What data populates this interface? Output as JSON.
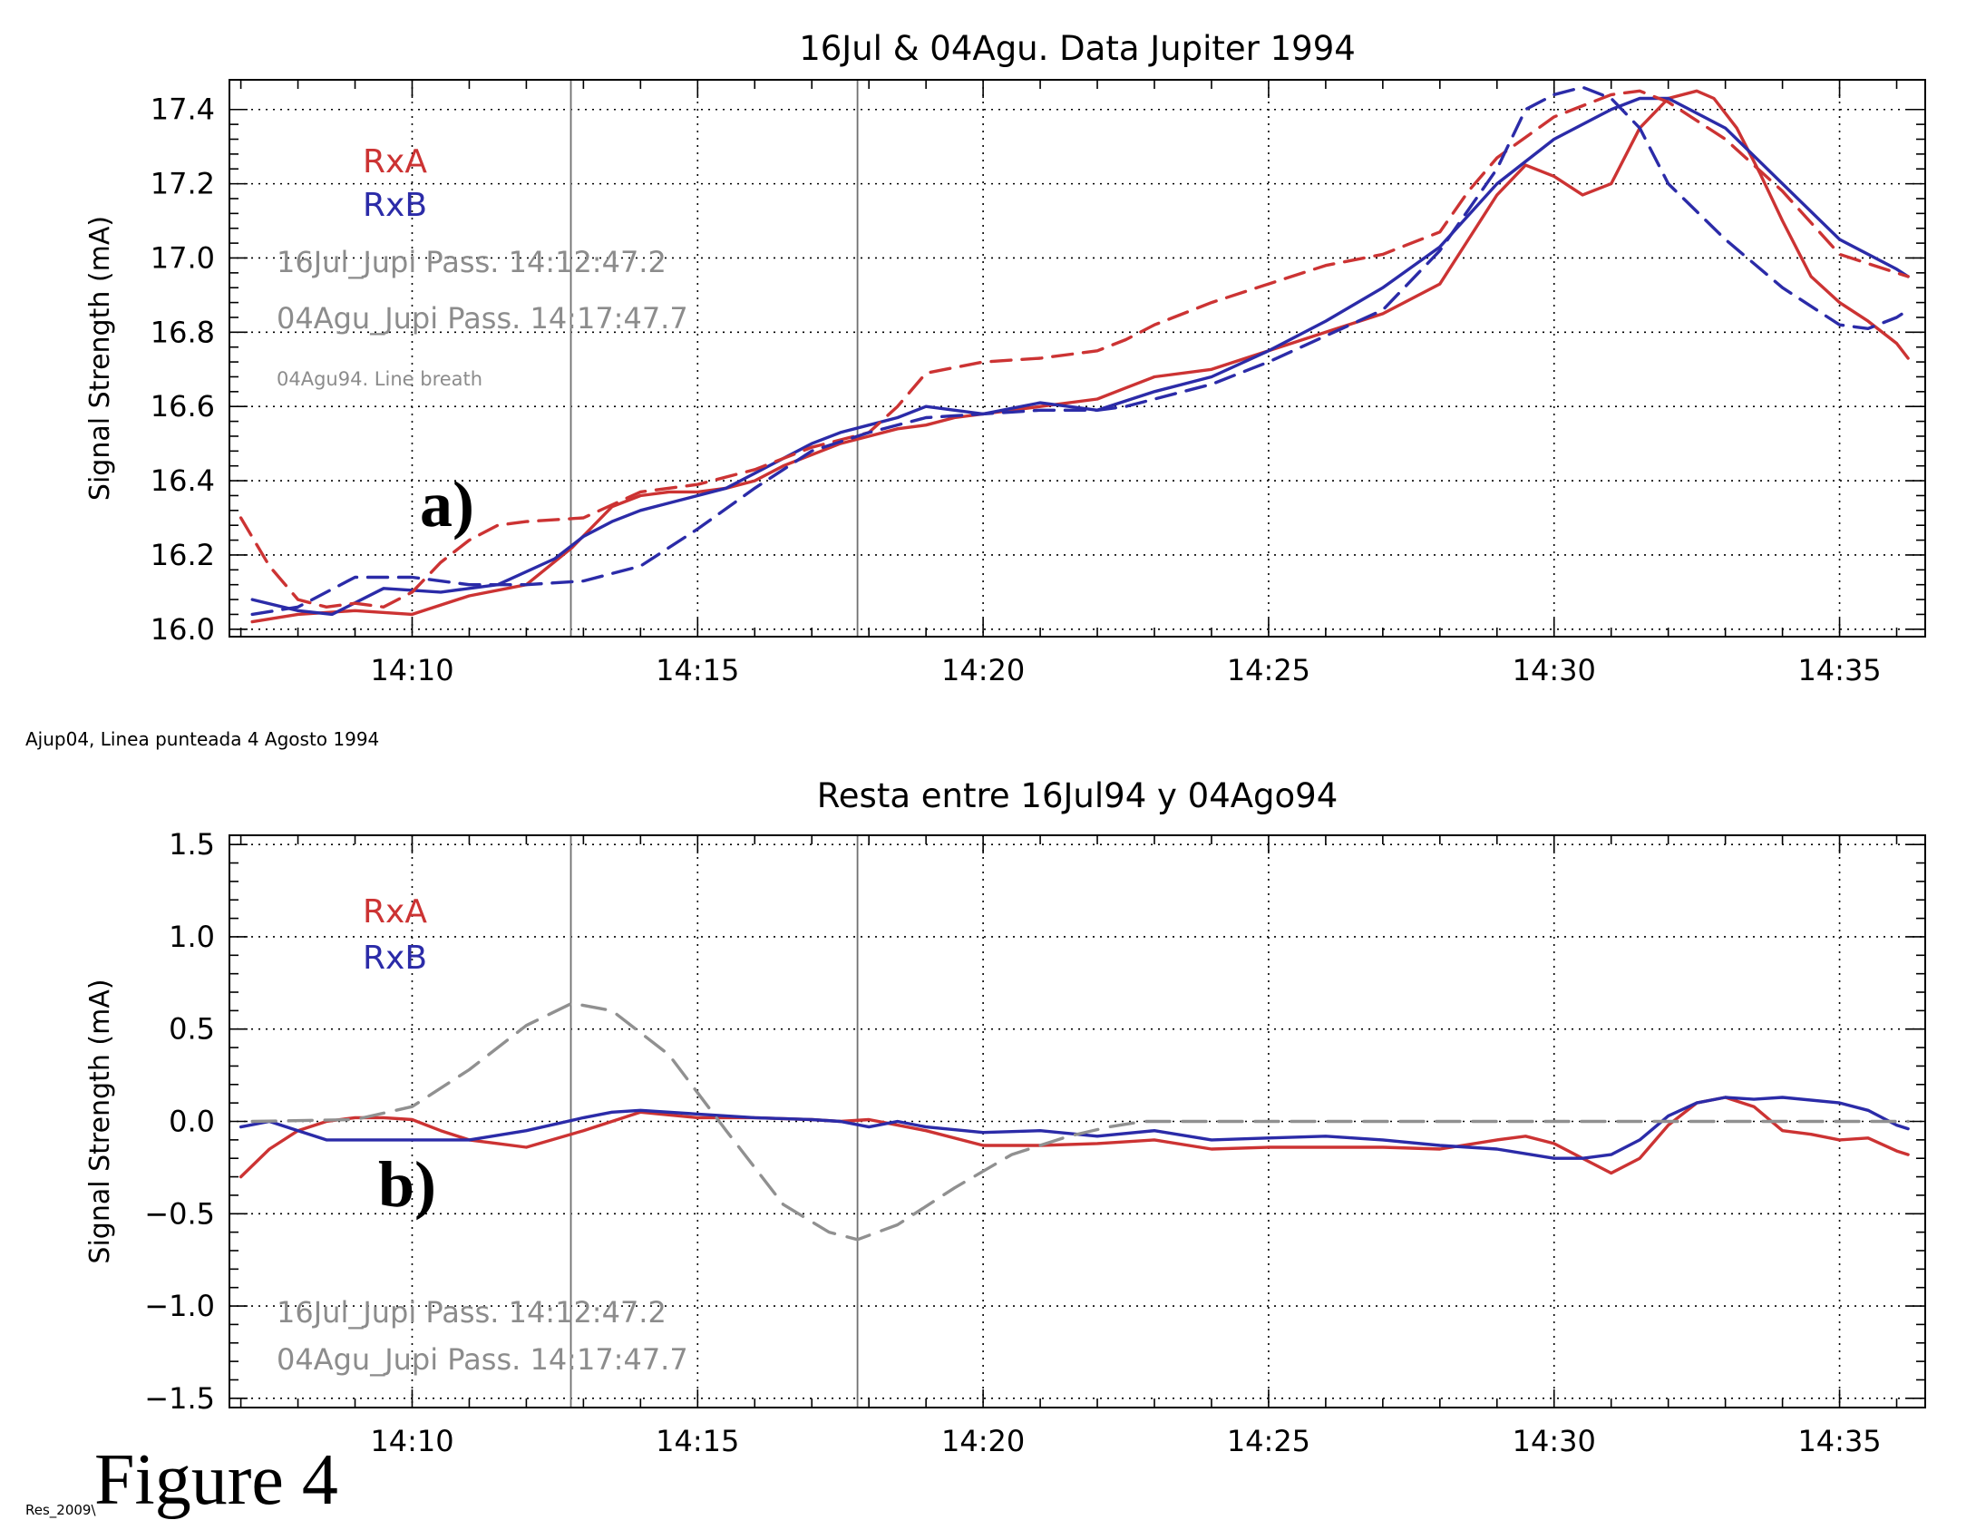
{
  "figure": {
    "label": "Figure 4",
    "footer": "Res_2009\\",
    "between_note": "Ajup04, Linea punteada 4 Agosto 1994"
  },
  "colors": {
    "rxa": "#cc3333",
    "rxb": "#2b2ba8",
    "ref": "#909090",
    "axis": "#000000",
    "grid": "#000000",
    "note": "#8c8c8c"
  },
  "x_ticks": [
    "14:10",
    "14:15",
    "14:20",
    "14:25",
    "14:30",
    "14:35"
  ],
  "chart_data": [
    {
      "type": "line",
      "panel": "a",
      "panel_label": "a)",
      "title": "16Jul & 04Agu. Data Jupiter 1994",
      "xlabel": "",
      "ylabel": "Signal Strength (mA)",
      "x_unit": "minutes after 14:00",
      "xlim": [
        6.8,
        36.5
      ],
      "ylim": [
        15.98,
        17.48
      ],
      "yticks": [
        "16.0",
        "16.2",
        "16.4",
        "16.6",
        "16.8",
        "17.0",
        "17.2",
        "17.4"
      ],
      "grid": true,
      "legend": {
        "position": "top-left",
        "entries": [
          "RxA",
          "RxB"
        ]
      },
      "annotations": [
        "16Jul_Jupi Pass. 14:12:47.2",
        "04Agu_Jupi Pass. 14:17:47.7",
        "04Agu94. Line breath"
      ],
      "vlines": [
        12.78,
        17.8
      ],
      "series": [
        {
          "name": "RxA",
          "style": "solid",
          "x": [
            7.2,
            8,
            9,
            10,
            11,
            12,
            12.8,
            13.5,
            14,
            14.5,
            15,
            15.5,
            16,
            16.5,
            17,
            17.5,
            18,
            18.5,
            19,
            19.5,
            20,
            21,
            22,
            22.5,
            23,
            24,
            25,
            26,
            27,
            28,
            28.5,
            29,
            29.5,
            30,
            30.5,
            31,
            31.5,
            32,
            32.5,
            32.8,
            33.2,
            33.6,
            34,
            34.5,
            35,
            35.5,
            36,
            36.2
          ],
          "y": [
            16.02,
            16.04,
            16.05,
            16.04,
            16.09,
            16.12,
            16.22,
            16.33,
            16.36,
            16.37,
            16.37,
            16.38,
            16.4,
            16.44,
            16.47,
            16.5,
            16.52,
            16.54,
            16.55,
            16.57,
            16.58,
            16.6,
            16.62,
            16.65,
            16.68,
            16.7,
            16.75,
            16.8,
            16.85,
            16.93,
            17.05,
            17.17,
            17.25,
            17.22,
            17.17,
            17.2,
            17.35,
            17.43,
            17.45,
            17.43,
            17.35,
            17.23,
            17.1,
            16.95,
            16.88,
            16.83,
            16.77,
            16.73
          ]
        },
        {
          "name": "RxB",
          "style": "solid",
          "x": [
            7.2,
            8,
            8.6,
            9.5,
            10.5,
            11.5,
            12.5,
            13,
            13.5,
            14,
            14.5,
            15,
            15.5,
            16,
            16.5,
            17,
            17.5,
            18,
            18.5,
            19,
            20,
            21,
            22,
            23,
            24,
            25,
            26,
            27,
            28,
            29,
            30,
            31,
            31.5,
            32,
            33,
            34,
            35,
            36,
            36.2
          ],
          "y": [
            16.08,
            16.05,
            16.04,
            16.11,
            16.1,
            16.12,
            16.19,
            16.25,
            16.29,
            16.32,
            16.34,
            16.36,
            16.38,
            16.42,
            16.46,
            16.5,
            16.53,
            16.55,
            16.57,
            16.6,
            16.58,
            16.61,
            16.59,
            16.64,
            16.68,
            16.75,
            16.83,
            16.92,
            17.03,
            17.2,
            17.32,
            17.4,
            17.43,
            17.43,
            17.35,
            17.2,
            17.05,
            16.97,
            16.95
          ]
        },
        {
          "name": "RxA",
          "style": "dashed",
          "x": [
            7.0,
            7.5,
            8,
            8.5,
            9,
            9.5,
            10,
            10.5,
            11,
            11.5,
            12,
            13,
            14,
            15,
            16,
            17,
            18,
            18.5,
            19,
            20,
            21,
            22,
            22.5,
            23,
            24,
            25,
            26,
            27,
            28,
            28.5,
            29,
            30,
            31,
            31.5,
            32,
            33,
            34,
            35,
            36,
            36.2
          ],
          "y": [
            16.3,
            16.17,
            16.08,
            16.06,
            16.07,
            16.06,
            16.1,
            16.18,
            16.24,
            16.28,
            16.29,
            16.3,
            16.37,
            16.39,
            16.43,
            16.49,
            16.53,
            16.6,
            16.69,
            16.72,
            16.73,
            16.75,
            16.78,
            16.82,
            16.88,
            16.93,
            16.98,
            17.01,
            17.07,
            17.18,
            17.27,
            17.38,
            17.44,
            17.45,
            17.42,
            17.32,
            17.18,
            17.01,
            16.96,
            16.95
          ]
        },
        {
          "name": "RxB",
          "style": "dashed",
          "x": [
            7.2,
            8,
            9,
            10,
            11,
            12,
            13,
            14,
            15,
            16,
            17,
            18,
            19,
            20,
            21,
            22,
            22.5,
            23,
            24,
            25,
            26,
            27,
            28,
            29,
            29.5,
            30,
            30.5,
            31,
            31.5,
            32,
            33,
            34,
            35,
            35.5,
            36,
            36.2
          ],
          "y": [
            16.04,
            16.06,
            16.14,
            16.14,
            16.12,
            16.12,
            16.13,
            16.17,
            16.27,
            16.38,
            16.48,
            16.53,
            16.57,
            16.58,
            16.59,
            16.59,
            16.6,
            16.62,
            16.66,
            16.72,
            16.79,
            16.86,
            17.02,
            17.24,
            17.4,
            17.44,
            17.46,
            17.43,
            17.35,
            17.2,
            17.05,
            16.92,
            16.82,
            16.81,
            16.84,
            16.86
          ]
        }
      ]
    },
    {
      "type": "line",
      "panel": "b",
      "panel_label": "b)",
      "title": "Resta entre 16Jul94 y 04Ago94",
      "xlabel": "",
      "ylabel": "Signal Strength (mA)",
      "x_unit": "minutes after 14:00",
      "xlim": [
        6.8,
        36.5
      ],
      "ylim": [
        -1.55,
        1.55
      ],
      "yticks": [
        "1.5",
        "1.0",
        "0.5",
        "0.0",
        "−0.5",
        "−1.0",
        "−1.5"
      ],
      "grid": true,
      "legend": {
        "position": "top-left",
        "entries": [
          "RxA",
          "RxB"
        ]
      },
      "annotations": [
        "16Jul_Jupi Pass. 14:12:47.2",
        "04Agu_Jupi Pass. 14:17:47.7"
      ],
      "vlines": [
        12.78,
        17.8
      ],
      "series": [
        {
          "name": "RxA",
          "style": "solid",
          "x": [
            7.0,
            7.5,
            8,
            8.5,
            9,
            9.5,
            10,
            10.5,
            11,
            11.5,
            12,
            13,
            14,
            15,
            16,
            17,
            17.5,
            18,
            18.5,
            19,
            20,
            21,
            22,
            23,
            24,
            25,
            26,
            27,
            28,
            29,
            29.5,
            30,
            30.5,
            31,
            31.5,
            32,
            32.5,
            33,
            33.5,
            34,
            34.5,
            35,
            35.5,
            36,
            36.2
          ],
          "y": [
            -0.3,
            -0.15,
            -0.05,
            0.0,
            0.02,
            0.02,
            0.01,
            -0.05,
            -0.1,
            -0.12,
            -0.14,
            -0.05,
            0.05,
            0.02,
            0.02,
            0.01,
            0.0,
            0.01,
            -0.02,
            -0.05,
            -0.13,
            -0.13,
            -0.12,
            -0.1,
            -0.15,
            -0.14,
            -0.14,
            -0.14,
            -0.15,
            -0.1,
            -0.08,
            -0.12,
            -0.2,
            -0.28,
            -0.2,
            -0.02,
            0.1,
            0.13,
            0.08,
            -0.05,
            -0.07,
            -0.1,
            -0.09,
            -0.16,
            -0.18
          ]
        },
        {
          "name": "RxB",
          "style": "solid",
          "x": [
            7.0,
            7.5,
            8,
            8.5,
            9,
            10,
            11,
            12,
            13,
            13.5,
            14,
            15,
            16,
            17,
            17.5,
            18,
            18.5,
            19,
            20,
            21,
            22,
            23,
            24,
            25,
            26,
            27,
            28,
            29,
            30,
            30.5,
            31,
            31.5,
            32,
            32.5,
            33,
            33.5,
            34,
            35,
            35.5,
            36,
            36.2
          ],
          "y": [
            -0.03,
            0.0,
            -0.05,
            -0.1,
            -0.1,
            -0.1,
            -0.1,
            -0.05,
            0.02,
            0.05,
            0.06,
            0.04,
            0.02,
            0.01,
            0.0,
            -0.03,
            0.0,
            -0.03,
            -0.06,
            -0.05,
            -0.08,
            -0.05,
            -0.1,
            -0.09,
            -0.08,
            -0.1,
            -0.13,
            -0.15,
            -0.2,
            -0.2,
            -0.18,
            -0.1,
            0.03,
            0.1,
            0.13,
            0.12,
            0.13,
            0.1,
            0.06,
            -0.02,
            -0.04
          ]
        },
        {
          "name": "",
          "style": "dashed-gray",
          "x": [
            7.2,
            9,
            10,
            11,
            12,
            12.8,
            13.5,
            14.5,
            15.5,
            16.5,
            17.3,
            17.8,
            18.5,
            19.5,
            20.5,
            21.5,
            22.2,
            22.8,
            24,
            26,
            28,
            30,
            32,
            34,
            36,
            36.2
          ],
          "y": [
            0.0,
            0.01,
            0.08,
            0.28,
            0.52,
            0.64,
            0.6,
            0.36,
            -0.05,
            -0.45,
            -0.6,
            -0.64,
            -0.56,
            -0.36,
            -0.18,
            -0.08,
            -0.03,
            0.0,
            0.0,
            0.0,
            0.0,
            0.0,
            0.0,
            0.0,
            0.0,
            0.0
          ]
        }
      ]
    }
  ]
}
